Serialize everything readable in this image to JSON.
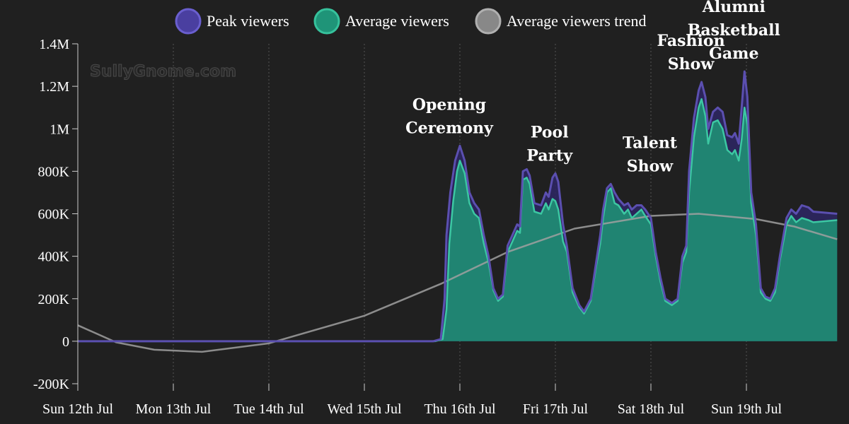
{
  "watermark": "SullyGnome.com",
  "chart_data": {
    "type": "area",
    "title": "",
    "xlabel": "",
    "ylabel": "",
    "ylim": [
      -200000,
      1400000
    ],
    "y_ticks": [
      {
        "value": 1400000,
        "label": "1.4M"
      },
      {
        "value": 1200000,
        "label": "1.2M"
      },
      {
        "value": 1000000,
        "label": "1M"
      },
      {
        "value": 800000,
        "label": "800K"
      },
      {
        "value": 600000,
        "label": "600K"
      },
      {
        "value": 400000,
        "label": "400K"
      },
      {
        "value": 200000,
        "label": "200K"
      },
      {
        "value": 0,
        "label": "0"
      },
      {
        "value": -200000,
        "label": "-200K"
      }
    ],
    "x_ticks": [
      {
        "day": 0,
        "label": "Sun 12th Jul"
      },
      {
        "day": 1,
        "label": "Mon 13th Jul"
      },
      {
        "day": 2,
        "label": "Tue 14th Jul"
      },
      {
        "day": 3,
        "label": "Wed 15th Jul"
      },
      {
        "day": 4,
        "label": "Thu 16th Jul"
      },
      {
        "day": 5,
        "label": "Fri 17th Jul"
      },
      {
        "day": 6,
        "label": "Sat 18th Jul"
      },
      {
        "day": 7,
        "label": "Sun 19th Jul"
      }
    ],
    "x_max_day": 7.95,
    "grid": "vertical dashed",
    "legend_position": "top",
    "series": [
      {
        "name": "Peak viewers",
        "color": "#5b4fb0",
        "points": [
          [
            0,
            0
          ],
          [
            3.72,
            0
          ],
          [
            3.8,
            10000
          ],
          [
            3.84,
            200000
          ],
          [
            3.86,
            500000
          ],
          [
            3.9,
            700000
          ],
          [
            3.95,
            850000
          ],
          [
            4.0,
            920000
          ],
          [
            4.05,
            850000
          ],
          [
            4.1,
            700000
          ],
          [
            4.15,
            650000
          ],
          [
            4.2,
            620000
          ],
          [
            4.25,
            500000
          ],
          [
            4.3,
            400000
          ],
          [
            4.35,
            250000
          ],
          [
            4.4,
            200000
          ],
          [
            4.45,
            220000
          ],
          [
            4.5,
            450000
          ],
          [
            4.55,
            500000
          ],
          [
            4.6,
            550000
          ],
          [
            4.63,
            540000
          ],
          [
            4.66,
            800000
          ],
          [
            4.7,
            810000
          ],
          [
            4.73,
            780000
          ],
          [
            4.78,
            650000
          ],
          [
            4.85,
            640000
          ],
          [
            4.9,
            700000
          ],
          [
            4.93,
            680000
          ],
          [
            4.97,
            770000
          ],
          [
            5.0,
            790000
          ],
          [
            5.03,
            750000
          ],
          [
            5.08,
            550000
          ],
          [
            5.12,
            450000
          ],
          [
            5.18,
            250000
          ],
          [
            5.25,
            170000
          ],
          [
            5.3,
            140000
          ],
          [
            5.37,
            200000
          ],
          [
            5.43,
            380000
          ],
          [
            5.47,
            500000
          ],
          [
            5.5,
            620000
          ],
          [
            5.54,
            720000
          ],
          [
            5.58,
            740000
          ],
          [
            5.62,
            700000
          ],
          [
            5.66,
            670000
          ],
          [
            5.72,
            640000
          ],
          [
            5.76,
            650000
          ],
          [
            5.8,
            620000
          ],
          [
            5.85,
            640000
          ],
          [
            5.9,
            640000
          ],
          [
            5.94,
            620000
          ],
          [
            6.0,
            580000
          ],
          [
            6.05,
            420000
          ],
          [
            6.1,
            300000
          ],
          [
            6.15,
            200000
          ],
          [
            6.22,
            180000
          ],
          [
            6.28,
            200000
          ],
          [
            6.33,
            400000
          ],
          [
            6.37,
            450000
          ],
          [
            6.4,
            800000
          ],
          [
            6.45,
            1050000
          ],
          [
            6.5,
            1180000
          ],
          [
            6.53,
            1220000
          ],
          [
            6.57,
            1150000
          ],
          [
            6.6,
            1000000
          ],
          [
            6.65,
            1080000
          ],
          [
            6.7,
            1100000
          ],
          [
            6.75,
            1080000
          ],
          [
            6.8,
            970000
          ],
          [
            6.85,
            960000
          ],
          [
            6.88,
            980000
          ],
          [
            6.92,
            930000
          ],
          [
            6.95,
            1100000
          ],
          [
            6.98,
            1270000
          ],
          [
            7.01,
            1150000
          ],
          [
            7.05,
            700000
          ],
          [
            7.1,
            550000
          ],
          [
            7.15,
            250000
          ],
          [
            7.2,
            210000
          ],
          [
            7.25,
            200000
          ],
          [
            7.3,
            250000
          ],
          [
            7.35,
            400000
          ],
          [
            7.42,
            580000
          ],
          [
            7.47,
            620000
          ],
          [
            7.52,
            600000
          ],
          [
            7.58,
            640000
          ],
          [
            7.65,
            630000
          ],
          [
            7.7,
            610000
          ],
          [
            7.95,
            600000
          ]
        ]
      },
      {
        "name": "Average viewers",
        "color": "#21967c",
        "points": [
          [
            0,
            0
          ],
          [
            3.74,
            0
          ],
          [
            3.82,
            10000
          ],
          [
            3.86,
            150000
          ],
          [
            3.89,
            460000
          ],
          [
            3.93,
            660000
          ],
          [
            3.97,
            800000
          ],
          [
            4.0,
            850000
          ],
          [
            4.05,
            790000
          ],
          [
            4.1,
            650000
          ],
          [
            4.15,
            600000
          ],
          [
            4.2,
            580000
          ],
          [
            4.25,
            460000
          ],
          [
            4.3,
            370000
          ],
          [
            4.35,
            240000
          ],
          [
            4.4,
            190000
          ],
          [
            4.45,
            210000
          ],
          [
            4.5,
            420000
          ],
          [
            4.55,
            470000
          ],
          [
            4.6,
            520000
          ],
          [
            4.63,
            510000
          ],
          [
            4.66,
            760000
          ],
          [
            4.7,
            770000
          ],
          [
            4.73,
            740000
          ],
          [
            4.78,
            610000
          ],
          [
            4.85,
            600000
          ],
          [
            4.9,
            650000
          ],
          [
            4.93,
            620000
          ],
          [
            4.97,
            670000
          ],
          [
            5.0,
            660000
          ],
          [
            5.03,
            620000
          ],
          [
            5.08,
            470000
          ],
          [
            5.12,
            420000
          ],
          [
            5.18,
            230000
          ],
          [
            5.25,
            160000
          ],
          [
            5.3,
            130000
          ],
          [
            5.37,
            190000
          ],
          [
            5.43,
            360000
          ],
          [
            5.47,
            460000
          ],
          [
            5.5,
            580000
          ],
          [
            5.54,
            700000
          ],
          [
            5.58,
            720000
          ],
          [
            5.62,
            650000
          ],
          [
            5.66,
            640000
          ],
          [
            5.72,
            600000
          ],
          [
            5.76,
            620000
          ],
          [
            5.8,
            580000
          ],
          [
            5.85,
            600000
          ],
          [
            5.9,
            620000
          ],
          [
            5.94,
            590000
          ],
          [
            6.0,
            550000
          ],
          [
            6.05,
            400000
          ],
          [
            6.1,
            280000
          ],
          [
            6.15,
            190000
          ],
          [
            6.22,
            170000
          ],
          [
            6.28,
            190000
          ],
          [
            6.33,
            370000
          ],
          [
            6.37,
            420000
          ],
          [
            6.4,
            700000
          ],
          [
            6.45,
            960000
          ],
          [
            6.5,
            1100000
          ],
          [
            6.53,
            1140000
          ],
          [
            6.57,
            1060000
          ],
          [
            6.6,
            930000
          ],
          [
            6.65,
            1030000
          ],
          [
            6.7,
            1040000
          ],
          [
            6.75,
            1000000
          ],
          [
            6.8,
            900000
          ],
          [
            6.85,
            880000
          ],
          [
            6.88,
            900000
          ],
          [
            6.92,
            850000
          ],
          [
            6.95,
            950000
          ],
          [
            6.98,
            1100000
          ],
          [
            7.01,
            1020000
          ],
          [
            7.05,
            650000
          ],
          [
            7.1,
            500000
          ],
          [
            7.15,
            230000
          ],
          [
            7.2,
            200000
          ],
          [
            7.25,
            190000
          ],
          [
            7.3,
            230000
          ],
          [
            7.35,
            380000
          ],
          [
            7.42,
            550000
          ],
          [
            7.47,
            590000
          ],
          [
            7.52,
            560000
          ],
          [
            7.58,
            580000
          ],
          [
            7.65,
            570000
          ],
          [
            7.7,
            560000
          ],
          [
            7.95,
            570000
          ]
        ]
      },
      {
        "name": "Average viewers trend",
        "color": "#a0a0a0",
        "points": [
          [
            0,
            75000
          ],
          [
            0.4,
            -5000
          ],
          [
            0.8,
            -40000
          ],
          [
            1.3,
            -50000
          ],
          [
            2.0,
            -10000
          ],
          [
            3.0,
            120000
          ],
          [
            3.8,
            270000
          ],
          [
            4.5,
            420000
          ],
          [
            5.2,
            530000
          ],
          [
            6.0,
            590000
          ],
          [
            6.5,
            600000
          ],
          [
            7.1,
            575000
          ],
          [
            7.5,
            540000
          ],
          [
            7.95,
            480000
          ]
        ]
      }
    ],
    "annotations": [
      {
        "day": 4.0,
        "value": 920000,
        "lines": [
          "Opening",
          "Ceremony"
        ]
      },
      {
        "day": 5.05,
        "value": 790000,
        "lines": [
          "Pool",
          "Party"
        ]
      },
      {
        "day": 6.1,
        "value": 740000,
        "lines": [
          "Talent",
          "Show"
        ]
      },
      {
        "day": 6.53,
        "value": 1220000,
        "lines": [
          "Fashion",
          "Show"
        ]
      },
      {
        "day": 6.98,
        "value": 1270000,
        "lines": [
          "Alumni",
          "Basketball",
          "Game"
        ]
      }
    ]
  }
}
